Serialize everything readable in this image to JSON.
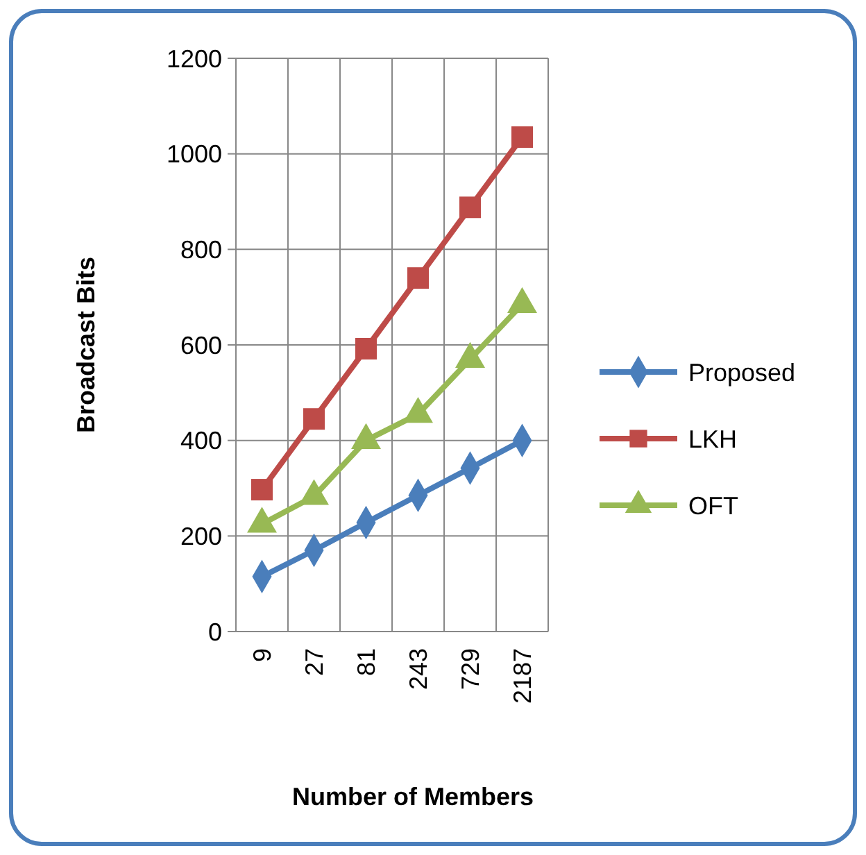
{
  "chart_data": {
    "type": "line",
    "xlabel": "Number of Members",
    "ylabel": "Broadcast Bits",
    "categories": [
      "9",
      "27",
      "81",
      "243",
      "729",
      "2187"
    ],
    "series": [
      {
        "name": "Proposed",
        "color": "#4a7ebb",
        "marker": "diamond",
        "values": [
          115,
          170,
          228,
          285,
          342,
          400
        ]
      },
      {
        "name": "LKH",
        "color": "#be4b48",
        "marker": "square",
        "values": [
          297,
          445,
          592,
          740,
          888,
          1035
        ]
      },
      {
        "name": "OFT",
        "color": "#98b954",
        "marker": "triangle",
        "values": [
          225,
          283,
          400,
          455,
          570,
          685
        ]
      }
    ],
    "ylim": [
      0,
      1200
    ],
    "yticks": [
      0,
      200,
      400,
      600,
      800,
      1000,
      1200
    ],
    "grid": true,
    "legend": "right"
  }
}
